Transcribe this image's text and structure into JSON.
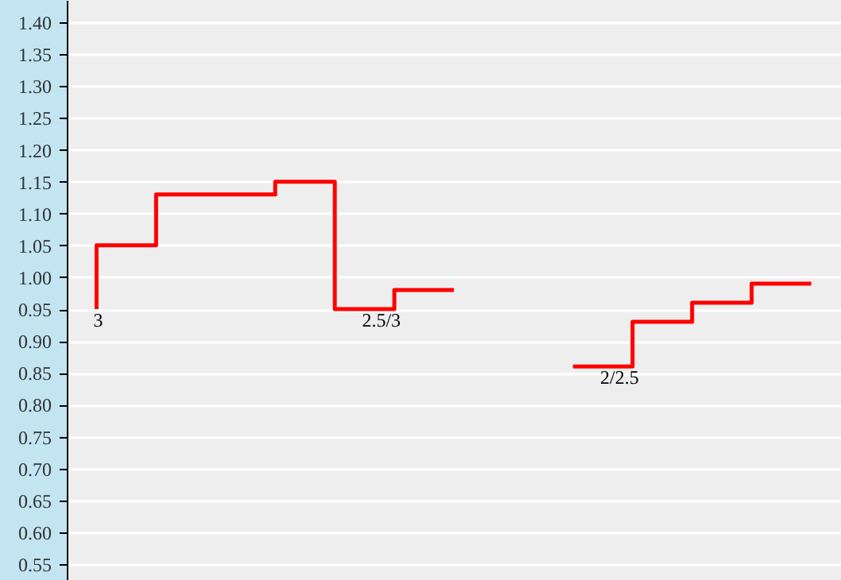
{
  "chart_data": {
    "type": "step",
    "categories": [
      null,
      null,
      null,
      null,
      null,
      null,
      null,
      null,
      null,
      null,
      null,
      null,
      null
    ],
    "series": [
      {
        "color": "#ff0000",
        "values": [
          0.95,
          1.05,
          1.13,
          1.13,
          1.15,
          0.95,
          0.98,
          null,
          0.86,
          0.86,
          0.93,
          0.96,
          0.99
        ]
      }
    ],
    "ylim": [
      0.525,
      1.435
    ],
    "yticks": [
      0.55,
      {
        "value": 0.6,
        "label": "0.60"
      },
      0.65,
      {
        "value": 0.7,
        "label": "0.70"
      },
      0.75,
      {
        "value": 0.8,
        "label": "0.80"
      },
      0.85,
      {
        "value": 0.9,
        "label": "0.90"
      },
      0.95,
      {
        "value": 1.0,
        "label": "1.00"
      },
      1.05,
      {
        "value": 1.1,
        "label": "1.10"
      },
      1.15,
      {
        "value": 1.2,
        "label": "1.20"
      },
      1.25,
      {
        "value": 1.3,
        "label": "1.30"
      },
      1.35,
      {
        "value": 1.4,
        "label": "1.40"
      }
    ],
    "grid": "y",
    "tick_labels": "y",
    "line_style": "solid",
    "marker": "none",
    "annotations": [
      {
        "text": "3",
        "y": 0.95
      },
      {
        "text": "2.5/3",
        "y": 0.95
      },
      {
        "text": "2/2.5",
        "y": 0.86
      }
    ]
  }
}
